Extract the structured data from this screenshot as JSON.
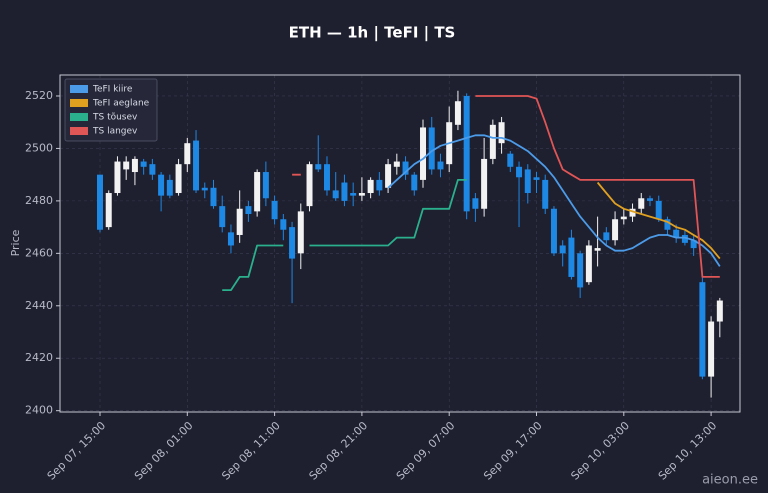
{
  "chart_data": {
    "type": "candlestick",
    "title": "ETH — 1h  |  TeFI  |  TS",
    "y_label": "Price",
    "watermark": "aieon.ee",
    "categories": [
      "Sep 07, 15:00",
      null,
      null,
      null,
      null,
      null,
      null,
      null,
      null,
      null,
      "Sep 08, 01:00",
      null,
      null,
      null,
      null,
      null,
      null,
      null,
      null,
      null,
      "Sep 08, 11:00",
      null,
      null,
      null,
      null,
      null,
      null,
      null,
      null,
      null,
      "Sep 08, 21:00",
      null,
      null,
      null,
      null,
      null,
      null,
      null,
      null,
      null,
      "Sep 09, 07:00",
      null,
      null,
      null,
      null,
      null,
      null,
      null,
      null,
      null,
      "Sep 09, 17:00",
      null,
      null,
      null,
      null,
      null,
      null,
      null,
      null,
      null,
      "Sep 10, 03:00",
      null,
      null,
      null,
      null,
      null,
      null,
      null,
      null,
      null,
      "Sep 10, 13:00",
      null
    ],
    "open": [
      2490,
      2470,
      2483,
      2492,
      2491,
      2495,
      2494,
      2490,
      2488,
      2483,
      2494,
      2503,
      2485,
      2485,
      2478,
      2468,
      2467,
      2478,
      2476,
      2491,
      2480,
      2473,
      2470,
      2460,
      2478,
      2494,
      2494,
      2484,
      2487,
      2483,
      2482,
      2483,
      2488,
      2485,
      2493,
      2495,
      2490,
      2488,
      2508,
      2495,
      2494,
      2509,
      2520,
      2481,
      2477,
      2496,
      2502,
      2498,
      2493,
      2492,
      2489,
      2488,
      2477,
      2463,
      2466,
      2460,
      2449,
      2461,
      2468,
      2465,
      2473,
      2474,
      2477,
      2481,
      2480,
      2473,
      2469,
      2467,
      2465,
      2449,
      2413,
      2434
    ],
    "high": [
      2490,
      2484,
      2497,
      2497,
      2497,
      2496,
      2496,
      2491,
      2490,
      2496,
      2504,
      2507,
      2487,
      2488,
      2482,
      2471,
      2484,
      2480,
      2492,
      2495,
      2482,
      2475,
      2472,
      2479,
      2495,
      2505,
      2497,
      2491,
      2490,
      2487,
      2489,
      2489,
      2491,
      2496,
      2498,
      2497,
      2491,
      2511,
      2512,
      2498,
      2516,
      2522,
      2521,
      2483,
      2504,
      2511,
      2512,
      2499,
      2495,
      2494,
      2491,
      2490,
      2478,
      2465,
      2469,
      2461,
      2465,
      2474,
      2470,
      2476,
      2477,
      2479,
      2483,
      2482,
      2482,
      2474,
      2471,
      2469,
      2467,
      2451,
      2436,
      2443
    ],
    "low": [
      2468,
      2469,
      2482,
      2488,
      2486,
      2490,
      2488,
      2476,
      2481,
      2482,
      2491,
      2483,
      2481,
      2477,
      2468,
      2460,
      2464,
      2472,
      2474,
      2478,
      2471,
      2465,
      2441,
      2454,
      2476,
      2491,
      2482,
      2480,
      2478,
      2478,
      2480,
      2481,
      2482,
      2483,
      2490,
      2488,
      2482,
      2485,
      2490,
      2489,
      2491,
      2507,
      2473,
      2472,
      2474,
      2494,
      2498,
      2491,
      2470,
      2479,
      2483,
      2475,
      2459,
      2455,
      2450,
      2443,
      2448,
      2455,
      2463,
      2463,
      2471,
      2472,
      2475,
      2478,
      2472,
      2467,
      2464,
      2463,
      2459,
      2412,
      2405,
      2428
    ],
    "close": [
      2469,
      2483,
      2495,
      2495,
      2496,
      2493,
      2490,
      2482,
      2482,
      2494,
      2502,
      2484,
      2484,
      2478,
      2470,
      2463,
      2477,
      2475,
      2491,
      2481,
      2473,
      2469,
      2458,
      2476,
      2494,
      2492,
      2484,
      2481,
      2480,
      2482,
      2483,
      2488,
      2484,
      2494,
      2495,
      2490,
      2484,
      2508,
      2492,
      2492,
      2510,
      2518,
      2476,
      2477,
      2496,
      2509,
      2510,
      2493,
      2489,
      2483,
      2488,
      2477,
      2460,
      2460,
      2451,
      2447,
      2463,
      2462,
      2465,
      2473,
      2474,
      2477,
      2481,
      2480,
      2473,
      2469,
      2466,
      2464,
      2462,
      2413,
      2434,
      2442
    ],
    "up_color": "#f2f2f2",
    "down_color": "#1e88e5",
    "series": [
      {
        "name": "TeFI kiire",
        "color": "#4c9be8",
        "values": [
          null,
          null,
          null,
          null,
          null,
          null,
          null,
          null,
          null,
          null,
          null,
          null,
          null,
          null,
          null,
          null,
          null,
          null,
          null,
          null,
          null,
          null,
          null,
          null,
          null,
          null,
          null,
          null,
          null,
          null,
          null,
          null,
          null,
          2485,
          2488,
          2491,
          2494,
          2496,
          2499,
          2501,
          2502,
          2503,
          2504,
          2505,
          2505,
          2504,
          2504,
          2503,
          2501,
          2499,
          2496,
          2493,
          2489,
          2484,
          2479,
          2474,
          2470,
          2466,
          2463,
          2461,
          2461,
          2462,
          2464,
          2466,
          2467,
          2467,
          2466,
          2466,
          2465,
          2463,
          2460,
          2455
        ]
      },
      {
        "name": "TeFI aeglane",
        "color": "#e0a020",
        "values": [
          null,
          null,
          null,
          null,
          null,
          null,
          null,
          null,
          null,
          null,
          null,
          null,
          null,
          null,
          null,
          null,
          null,
          null,
          null,
          null,
          null,
          null,
          null,
          null,
          null,
          null,
          null,
          null,
          null,
          null,
          null,
          null,
          null,
          null,
          null,
          null,
          null,
          null,
          null,
          null,
          null,
          null,
          null,
          null,
          null,
          null,
          null,
          null,
          null,
          null,
          null,
          null,
          null,
          null,
          null,
          null,
          null,
          2487,
          2483,
          2479,
          2477,
          2476,
          2475,
          2474,
          2473,
          2472,
          2470,
          2469,
          2467,
          2465,
          2462,
          2458
        ]
      },
      {
        "name": "TS tõusev",
        "color": "#2ab08c",
        "values": [
          null,
          null,
          null,
          null,
          null,
          null,
          null,
          null,
          null,
          null,
          null,
          null,
          null,
          null,
          2446,
          2446,
          2451,
          2451,
          2463,
          2463,
          2463,
          2463,
          null,
          null,
          2463,
          2463,
          2463,
          2463,
          2463,
          2463,
          2463,
          2463,
          2463,
          2463,
          2466,
          2466,
          2466,
          2477,
          2477,
          2477,
          2477,
          2488,
          2488,
          null,
          null,
          null,
          null,
          null,
          null,
          null,
          null,
          null,
          null,
          null,
          null,
          null,
          null,
          null,
          null,
          null,
          null,
          null,
          null,
          null,
          null,
          null,
          null,
          null,
          null,
          null,
          null,
          null
        ]
      },
      {
        "name": "TS langev",
        "color": "#e05555",
        "values": [
          null,
          null,
          null,
          null,
          null,
          null,
          null,
          null,
          null,
          null,
          null,
          null,
          null,
          null,
          null,
          null,
          null,
          null,
          null,
          null,
          null,
          null,
          2490,
          2490,
          null,
          null,
          null,
          null,
          null,
          null,
          null,
          null,
          null,
          null,
          null,
          null,
          null,
          null,
          null,
          null,
          null,
          null,
          null,
          2520,
          2520,
          2520,
          2520,
          2520,
          2520,
          2520,
          2519,
          2510,
          2500,
          2492,
          2490,
          2488,
          2488,
          2488,
          2488,
          2488,
          2488,
          2488,
          2488,
          2488,
          2488,
          2488,
          2488,
          2488,
          2488,
          2451,
          2451,
          2451
        ]
      }
    ],
    "ylim": [
      2399.5,
      2528
    ],
    "yticks": [
      2400,
      2420,
      2440,
      2460,
      2480,
      2500,
      2520
    ],
    "grid": true,
    "legend": "upper left"
  }
}
